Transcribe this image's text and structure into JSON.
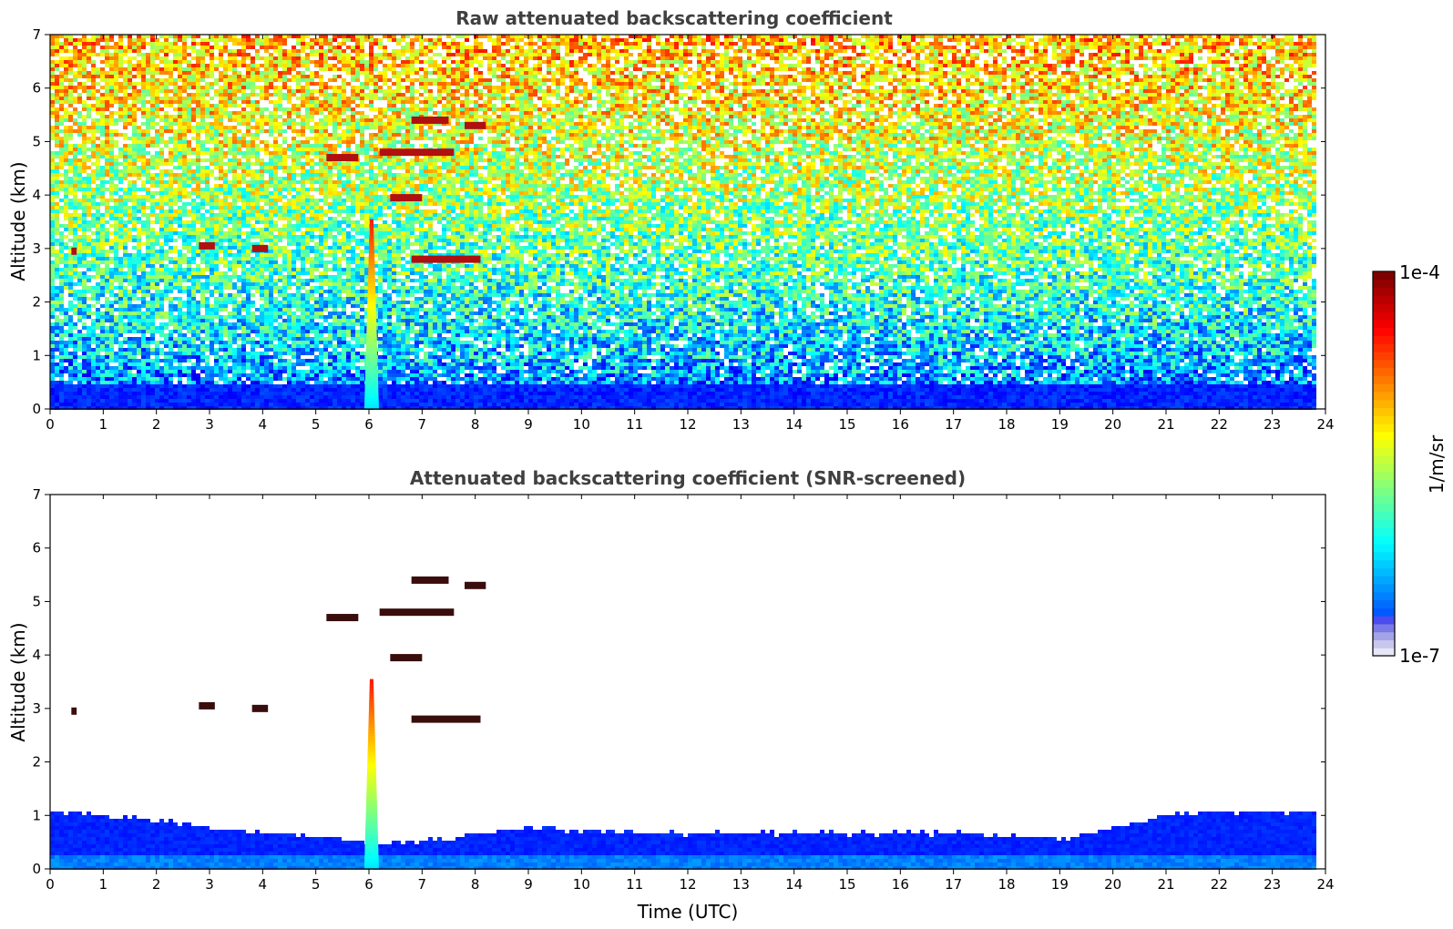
{
  "chart_data": [
    {
      "type": "heatmap",
      "title": "Raw attenuated backscattering coefficient",
      "xlabel": "",
      "ylabel": "Altitude (km)",
      "xlim": [
        0,
        24
      ],
      "ylim": [
        0,
        7
      ],
      "x_ticks": [
        "0",
        "1",
        "2",
        "3",
        "4",
        "5",
        "6",
        "7",
        "8",
        "9",
        "10",
        "11",
        "12",
        "13",
        "14",
        "15",
        "16",
        "17",
        "18",
        "19",
        "20",
        "21",
        "22",
        "23",
        "24"
      ],
      "y_ticks": [
        "0",
        "1",
        "2",
        "3",
        "4",
        "5",
        "6",
        "7"
      ],
      "data_end_time": 23.8,
      "features": {
        "surface_layer_top_km": 0.5,
        "smoke_plume": {
          "time_utc": 6.05,
          "base_km": 0.0,
          "top_km": 3.5
        },
        "cloud_fragments": [
          {
            "time_start": 5.2,
            "time_end": 5.8,
            "altitude_km": 4.7
          },
          {
            "time_start": 6.2,
            "time_end": 7.6,
            "altitude_km": 4.8
          },
          {
            "time_start": 6.8,
            "time_end": 7.5,
            "altitude_km": 5.4
          },
          {
            "time_start": 7.8,
            "time_end": 8.2,
            "altitude_km": 5.3
          },
          {
            "time_start": 6.4,
            "time_end": 7.0,
            "altitude_km": 3.95
          },
          {
            "time_start": 6.8,
            "time_end": 7.8,
            "altitude_km": 2.8
          },
          {
            "time_start": 7.8,
            "time_end": 8.1,
            "altitude_km": 2.8
          },
          {
            "time_start": 2.8,
            "time_end": 3.1,
            "altitude_km": 3.05
          },
          {
            "time_start": 3.8,
            "time_end": 4.1,
            "altitude_km": 3.0
          },
          {
            "time_start": 0.4,
            "time_end": 0.5,
            "altitude_km": 2.95
          }
        ],
        "noise_increases_with_altitude": true
      }
    },
    {
      "type": "heatmap",
      "title": "Attenuated backscattering coefficient (SNR-screened)",
      "xlabel": "Time (UTC)",
      "ylabel": "Altitude (km)",
      "xlim": [
        0,
        24
      ],
      "ylim": [
        0,
        7
      ],
      "x_ticks": [
        "0",
        "1",
        "2",
        "3",
        "4",
        "5",
        "6",
        "7",
        "8",
        "9",
        "10",
        "11",
        "12",
        "13",
        "14",
        "15",
        "16",
        "17",
        "18",
        "19",
        "20",
        "21",
        "22",
        "23",
        "24"
      ],
      "y_ticks": [
        "0",
        "1",
        "2",
        "3",
        "4",
        "5",
        "6",
        "7"
      ],
      "data_end_time": 23.8,
      "features": {
        "boundary_layer_top_km": [
          [
            0,
            1.1
          ],
          [
            1,
            1.05
          ],
          [
            2,
            0.95
          ],
          [
            3,
            0.8
          ],
          [
            4,
            0.7
          ],
          [
            5,
            0.65
          ],
          [
            6,
            0.5
          ],
          [
            7,
            0.55
          ],
          [
            8,
            0.7
          ],
          [
            9,
            0.8
          ],
          [
            10,
            0.75
          ],
          [
            11,
            0.7
          ],
          [
            12,
            0.7
          ],
          [
            13,
            0.7
          ],
          [
            14,
            0.7
          ],
          [
            15,
            0.7
          ],
          [
            16,
            0.7
          ],
          [
            17,
            0.7
          ],
          [
            18,
            0.65
          ],
          [
            19,
            0.6
          ],
          [
            20,
            0.8
          ],
          [
            21,
            1.05
          ],
          [
            22,
            1.1
          ],
          [
            23,
            1.1
          ],
          [
            23.8,
            1.1
          ]
        ],
        "smoke_plume": {
          "time_utc": 6.05,
          "base_km": 0.0,
          "top_km": 3.5
        }
      }
    }
  ],
  "colorbar": {
    "max_label": "1e-4",
    "min_label": "1e-7",
    "unit_label": "1/m/sr",
    "colormap": "jet"
  }
}
